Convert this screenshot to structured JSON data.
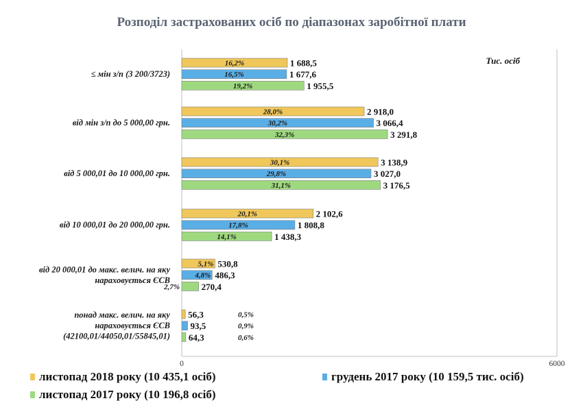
{
  "chart_data": {
    "type": "bar",
    "orientation": "horizontal",
    "title": "Розподіл застрахованих осіб по діапазонах заробітної плати",
    "unit_label": "Тис. осіб",
    "xlim": [
      0,
      6000
    ],
    "xticks": [
      "0",
      "6000"
    ],
    "categories": [
      [
        "≤ мін з/п (3 200/3723)"
      ],
      [
        "від мін з/п до 5 000,00 грн."
      ],
      [
        "від 5 000,01 до 10 000,00 грн."
      ],
      [
        "від 10 000,01 до 20 000,00 грн."
      ],
      [
        "від 20 000,01 до макс. велич. на яку",
        "нараховується ЄСВ"
      ],
      [
        "понад  макс. велич. на яку",
        "нараховується ЄСВ",
        "(42100,01/44050,01/55845,01)"
      ]
    ],
    "series": [
      {
        "name": "листопад 2018 року (10 435,1 осіб)",
        "color": "#f0c75a",
        "values": [
          1688.5,
          2918.0,
          3138.9,
          2102.6,
          530.8,
          56.3
        ],
        "value_labels": [
          "1 688,5",
          "2 918,0",
          "3 138,9",
          "2 102,6",
          "530,8",
          "56,3"
        ],
        "pct_labels": [
          "16,2%",
          "28,0%",
          "30,1%",
          "20,1%",
          "5,1%",
          "0,5%"
        ]
      },
      {
        "name": "грудень 2017 року (10 159,5 тис. осіб)",
        "color": "#5aaee6",
        "values": [
          1677.6,
          3066.4,
          3027.0,
          1808.8,
          486.3,
          93.5
        ],
        "value_labels": [
          "1 677,6",
          "3 066,4",
          "3 027,0",
          "1 808,8",
          "486,3",
          "93,5"
        ],
        "pct_labels": [
          "16,5%",
          "30,2%",
          "29,8%",
          "17,8%",
          "4,8%",
          "0,9%"
        ]
      },
      {
        "name": "листопад 2017 року (10 196,8 осіб)",
        "color": "#9fd97f",
        "values": [
          1955.5,
          3291.8,
          3176.5,
          1438.3,
          270.4,
          64.3
        ],
        "value_labels": [
          "1 955,5",
          "3 291,8",
          "3 176,5",
          "1 438,3",
          "270,4",
          "64,3"
        ],
        "pct_labels": [
          "19,2%",
          "32,3%",
          "31,1%",
          "14,1%",
          "2,7%",
          "0,6%"
        ]
      }
    ],
    "legend_position": "bottom",
    "grid": false
  }
}
